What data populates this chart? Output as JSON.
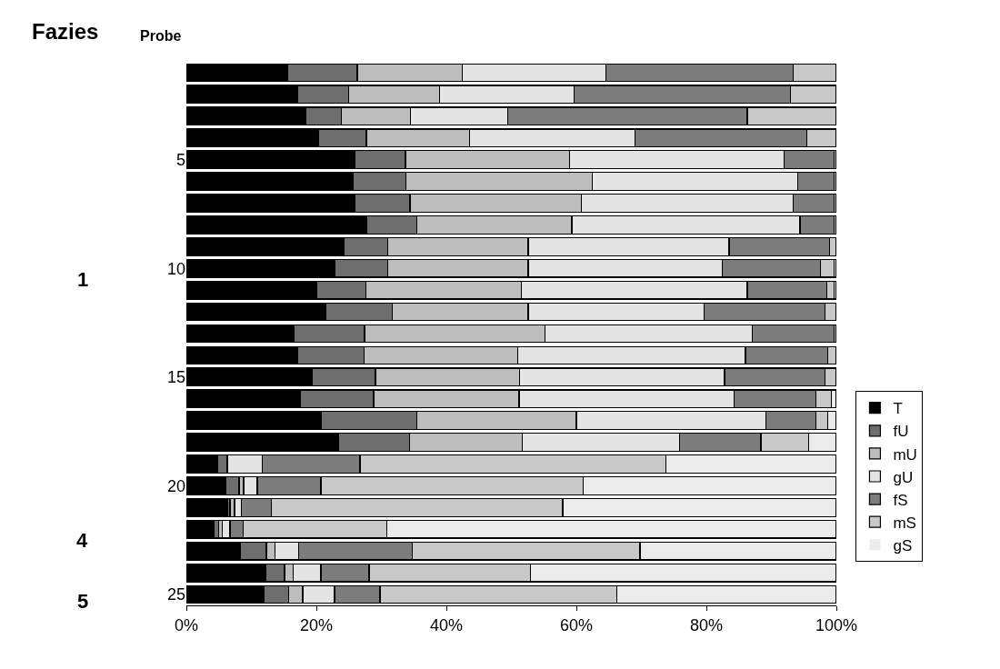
{
  "chart_data": {
    "type": "bar",
    "orientation": "horizontal",
    "stacked": true,
    "title": "Fazies",
    "ylabel": "Probe",
    "categories": [
      null,
      null,
      null,
      null,
      "5",
      null,
      null,
      null,
      null,
      "10",
      null,
      null,
      null,
      null,
      "15",
      null,
      null,
      null,
      null,
      "20",
      null,
      null,
      null,
      null,
      "25"
    ],
    "series": [
      {
        "name": "T",
        "color": "#000000",
        "values": [
          15.6,
          17.1,
          18.4,
          20.4,
          25.9,
          25.6,
          25.9,
          27.8,
          24.3,
          22.9,
          20.1,
          21.4,
          16.5,
          17.1,
          19.3,
          17.6,
          20.8,
          23.4,
          4.8,
          6.0,
          6.3,
          4.2,
          8.3,
          12.2,
          12.0
        ]
      },
      {
        "name": "fU",
        "color": "#6e6e6e",
        "values": [
          10.7,
          7.9,
          5.5,
          7.3,
          7.8,
          8.2,
          8.5,
          7.6,
          6.7,
          8.1,
          7.5,
          10.3,
          10.9,
          10.2,
          9.8,
          11.2,
          14.7,
          10.9,
          1.5,
          2.1,
          0.4,
          0.8,
          4.0,
          2.9,
          3.7
        ]
      },
      {
        "name": "mU",
        "color": "#bdbdbd",
        "values": [
          16.2,
          13.9,
          10.6,
          15.9,
          25.3,
          28.6,
          26.4,
          23.9,
          21.6,
          21.6,
          23.9,
          20.9,
          27.8,
          23.7,
          22.2,
          22.4,
          24.5,
          17.4,
          0,
          0.7,
          0.7,
          0.5,
          1.3,
          1.3,
          2.2
        ]
      },
      {
        "name": "gU",
        "color": "#e4e4e4",
        "values": [
          22.1,
          20.8,
          14.9,
          25.4,
          33.0,
          31.7,
          32.5,
          35.1,
          30.9,
          29.8,
          34.8,
          27.0,
          31.9,
          35.0,
          31.5,
          33.1,
          29.2,
          24.2,
          5.4,
          2.1,
          1.1,
          1.2,
          3.7,
          4.3,
          4.9
        ]
      },
      {
        "name": "fS",
        "color": "#7c7c7c",
        "values": [
          28.7,
          33.2,
          36.9,
          26.4,
          7.6,
          5.5,
          6.3,
          5.3,
          15.5,
          15.2,
          12.2,
          18.7,
          12.5,
          12.7,
          15.5,
          12.6,
          7.7,
          12.5,
          15.0,
          9.8,
          4.6,
          2.0,
          17.5,
          7.4,
          7.0
        ]
      },
      {
        "name": "mS",
        "color": "#c8c8c8",
        "values": [
          6.7,
          7.1,
          13.7,
          4.6,
          0.4,
          0.4,
          0.4,
          0.3,
          1.0,
          2.0,
          1.1,
          1.7,
          0.4,
          1.3,
          1.7,
          2.3,
          1.8,
          7.3,
          47.1,
          40.4,
          44.8,
          22.1,
          35.0,
          24.8,
          36.4
        ]
      },
      {
        "name": "gS",
        "color": "#ebebeb",
        "values": [
          0,
          0,
          0,
          0,
          0,
          0,
          0,
          0,
          0,
          0.4,
          0.4,
          0,
          0,
          0,
          0,
          0.8,
          1.3,
          4.3,
          26.2,
          38.9,
          42.1,
          69.2,
          30.2,
          47.1,
          33.8
        ]
      }
    ],
    "xlim": [
      0,
      100
    ],
    "xticks": [
      {
        "value": 0,
        "label": "0%"
      },
      {
        "value": 20,
        "label": "20%"
      },
      {
        "value": 40,
        "label": "40%"
      },
      {
        "value": 60,
        "label": "60%"
      },
      {
        "value": 80,
        "label": "80%"
      },
      {
        "value": 100,
        "label": "100%"
      }
    ],
    "annotations": [
      "1",
      "4",
      "5"
    ],
    "legend": "right"
  }
}
